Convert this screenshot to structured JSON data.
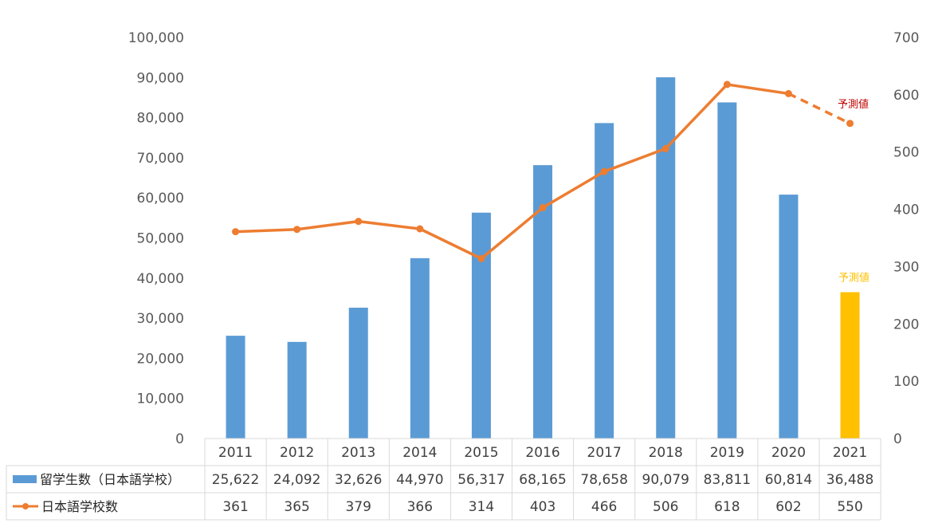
{
  "chart_data": {
    "type": "bar",
    "categories": [
      "2011",
      "2012",
      "2013",
      "2014",
      "2015",
      "2016",
      "2017",
      "2018",
      "2019",
      "2020",
      "2021"
    ],
    "series": [
      {
        "name": "留学生数（日本語学校）",
        "type": "bar",
        "axis": "left",
        "color": "#5b9bd5",
        "values": [
          25622,
          24092,
          32626,
          44970,
          56317,
          68165,
          78658,
          90079,
          83811,
          60814,
          36488
        ],
        "labels": [
          "25,622",
          "24,092",
          "32,626",
          "44,970",
          "56,317",
          "68,165",
          "78,658",
          "90,079",
          "83,811",
          "60,814",
          "36,488"
        ],
        "forecast_color": "#ffc000",
        "forecast_index": 10
      },
      {
        "name": "日本語学校数",
        "type": "line",
        "axis": "right",
        "color": "#ed7d31",
        "values": [
          361,
          365,
          379,
          366,
          314,
          403,
          466,
          506,
          618,
          602,
          550
        ],
        "labels": [
          "361",
          "365",
          "379",
          "366",
          "314",
          "403",
          "466",
          "506",
          "618",
          "602",
          "550"
        ],
        "forecast_from_index": 9
      }
    ],
    "y_left": {
      "min": 0,
      "max": 100000,
      "ticks": [
        "0",
        "10,000",
        "20,000",
        "30,000",
        "40,000",
        "50,000",
        "60,000",
        "70,000",
        "80,000",
        "90,000",
        "100,000"
      ]
    },
    "y_right": {
      "min": 0,
      "max": 700,
      "ticks": [
        "0",
        "100",
        "200",
        "300",
        "400",
        "500",
        "600",
        "700"
      ]
    },
    "annotations": [
      {
        "text": "予測値",
        "target": "line",
        "index": 10,
        "color": "#c00000"
      },
      {
        "text": "予測値",
        "target": "bar",
        "index": 10,
        "color": "#ffc000"
      }
    ],
    "grid": false,
    "data_table": true
  }
}
